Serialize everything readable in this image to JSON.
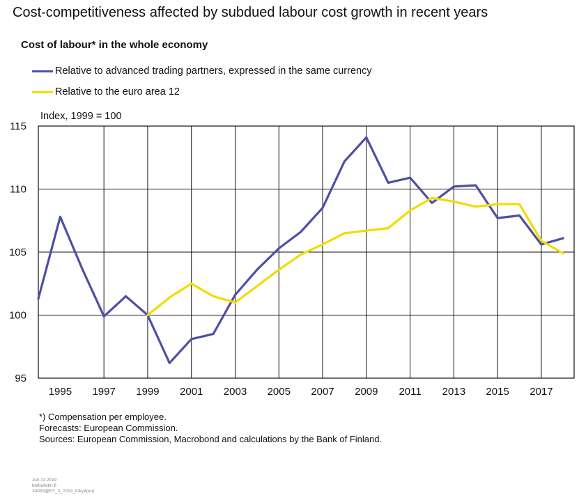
{
  "title": "Cost-competitiveness affected by subdued labour cost growth in recent years",
  "subtitle": "Cost of labour* in the whole economy",
  "unit_label": "Index, 1999 = 100",
  "colors": {
    "blue": "#4e4fa3",
    "yellow": "#f2dc00",
    "grid": "#111111"
  },
  "notes": [
    "*) Compensation per employee.",
    "Forecasts: European Commission.",
    "Sources: European Commission, Macrobond and calculations by the Bank of Finland."
  ],
  "meta": [
    "Jun 11 2019",
    "bofbulletin.fi",
    "34093@ET_3_2019_Kiky4(en)"
  ],
  "chart_data": {
    "type": "line",
    "title": "Cost of labour* in the whole economy",
    "ylabel": "Index, 1999 = 100",
    "xlabel": "",
    "ylim": [
      95,
      115
    ],
    "y_ticks": [
      95,
      100,
      105,
      110,
      115
    ],
    "x_tick_labels": [
      "1995",
      "1997",
      "1999",
      "2001",
      "2003",
      "2005",
      "2007",
      "2009",
      "2011",
      "2013",
      "2015",
      "2017"
    ],
    "grid": true,
    "legend_position": "top-left",
    "series": [
      {
        "name": "Relative to advanced trading partners, expressed in the same currency",
        "color": "#4e4fa3",
        "x": [
          1994,
          1995,
          1996,
          1997,
          1998,
          1999,
          2000,
          2001,
          2002,
          2003,
          2004,
          2005,
          2006,
          2007,
          2008,
          2009,
          2010,
          2011,
          2012,
          2013,
          2014,
          2015,
          2016,
          2017,
          2018
        ],
        "values": [
          101.3,
          107.8,
          103.7,
          99.9,
          101.5,
          100.0,
          96.2,
          98.1,
          98.5,
          101.6,
          103.6,
          105.3,
          106.6,
          108.5,
          112.2,
          114.1,
          110.5,
          110.9,
          108.9,
          110.2,
          110.3,
          107.7,
          107.9,
          105.6,
          106.1
        ]
      },
      {
        "name": "Relative to the euro area 12",
        "color": "#f2dc00",
        "x": [
          1999,
          2000,
          2001,
          2002,
          2003,
          2004,
          2005,
          2006,
          2007,
          2008,
          2009,
          2010,
          2011,
          2012,
          2013,
          2014,
          2015,
          2016,
          2017,
          2018
        ],
        "values": [
          100.0,
          101.4,
          102.5,
          101.5,
          101.0,
          102.3,
          103.6,
          104.8,
          105.6,
          106.5,
          106.7,
          106.9,
          108.3,
          109.3,
          109.0,
          108.6,
          108.8,
          108.8,
          105.9,
          104.9
        ]
      }
    ]
  }
}
